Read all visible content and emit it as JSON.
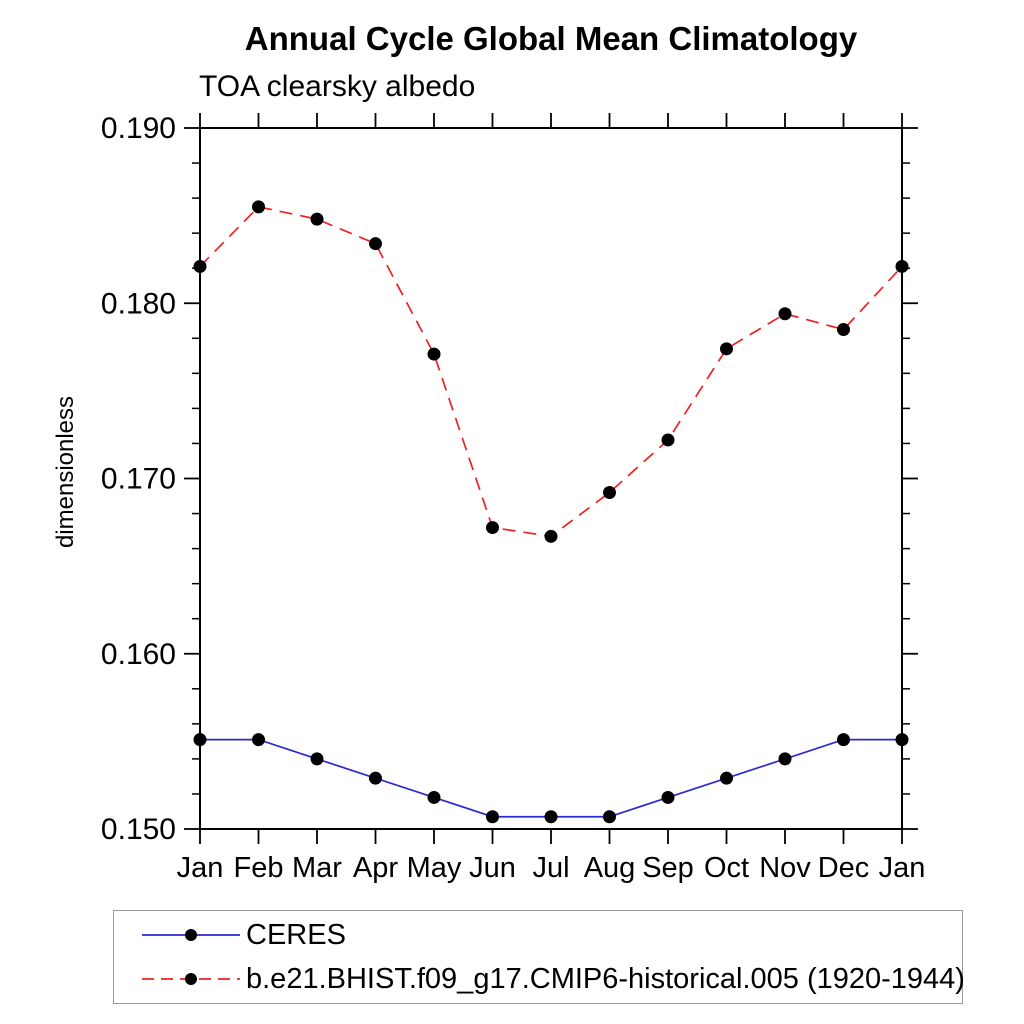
{
  "title": "Annual Cycle Global Mean Climatology",
  "subtitle": "TOA clearsky albedo",
  "colors": {
    "ceres_line": "#2a2ad2",
    "model_line": "#ee2222",
    "marker": "#000000",
    "axis": "#000000",
    "legend_border": "#9a9a9a"
  },
  "chart_data": {
    "type": "line",
    "title": "Annual Cycle Global Mean Climatology",
    "subtitle": "TOA clearsky albedo",
    "xlabel": "",
    "ylabel": "dimensionless",
    "categories": [
      "Jan",
      "Feb",
      "Mar",
      "Apr",
      "May",
      "Jun",
      "Jul",
      "Aug",
      "Sep",
      "Oct",
      "Nov",
      "Dec",
      "Jan"
    ],
    "ylim": [
      0.15,
      0.19
    ],
    "yticks_major": [
      0.15,
      0.16,
      0.17,
      0.18,
      0.19
    ],
    "ytick_labels": [
      "0.150",
      "0.160",
      "0.170",
      "0.180",
      "0.190"
    ],
    "ytick_minor_step": 0.002,
    "grid": false,
    "legend_position": "bottom-left",
    "marker": {
      "shape": "filled-circle",
      "color": "#000000"
    },
    "series": [
      {
        "name": "CERES",
        "color": "#2a2ad2",
        "style": "solid",
        "values": [
          0.1551,
          0.1551,
          0.154,
          0.1529,
          0.1518,
          0.1507,
          0.1507,
          0.1507,
          0.1518,
          0.1529,
          0.154,
          0.1551,
          0.1551
        ]
      },
      {
        "name": "b.e21.BHIST.f09_g17.CMIP6-historical.005 (1920-1944)",
        "color": "#ee2222",
        "style": "dashed",
        "values": [
          0.1821,
          0.1855,
          0.1848,
          0.1834,
          0.1771,
          0.1672,
          0.1667,
          0.1692,
          0.1722,
          0.1774,
          0.1794,
          0.1785,
          0.1821
        ]
      }
    ]
  }
}
